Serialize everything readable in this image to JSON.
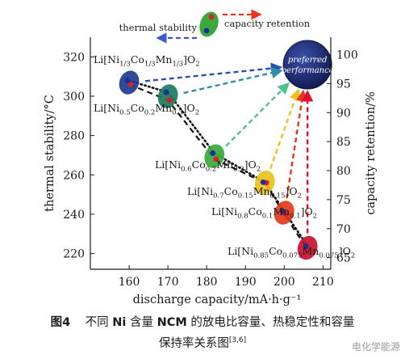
{
  "chart_data": {
    "type": "scatter",
    "xlabel": "discharge capacity/mA·h·g⁻¹",
    "ylabel_left": "thermal stability/°C",
    "ylabel_right": "capacity retention/%",
    "xlim": [
      150,
      212
    ],
    "ylim_left": [
      212,
      330
    ],
    "ylim_right": [
      63,
      103
    ],
    "x_ticks": [
      160,
      170,
      180,
      190,
      200,
      210
    ],
    "y_left_ticks": [
      220,
      240,
      260,
      280,
      300,
      320
    ],
    "y_right_ticks": [
      65,
      70,
      75,
      80,
      85,
      90,
      95,
      100
    ],
    "materials": [
      {
        "label_parts": [
          "Li[Ni",
          "1/3",
          "Co",
          "1/3",
          "Mn",
          "1/3",
          "]O",
          "2"
        ],
        "capacity": 160,
        "thermal_stability": 306,
        "capacity_retention": 95.5,
        "ellipse_color": "#1f3b8f",
        "arrow_color": "#2d4fb8"
      },
      {
        "label_parts": [
          "Li[Ni",
          "0.5",
          "Co",
          "0.2",
          "Mn",
          "0.3",
          "]O",
          "2"
        ],
        "capacity": 170,
        "thermal_stability": 298,
        "capacity_retention": 93.5,
        "ellipse_color": "#1e7a5c",
        "arrow_color": "#2e8fa8"
      },
      {
        "label_parts": [
          "Li[Ni",
          "0.6",
          "Co",
          "0.2",
          "Mn",
          "0.2",
          "]O",
          "2"
        ],
        "capacity": 182,
        "thermal_stability": 268,
        "capacity_retention": 83,
        "ellipse_color": "#3aa83a",
        "arrow_color": "#4cc28c"
      },
      {
        "label_parts": [
          "Li[Ni",
          "0.7",
          "Co",
          "0.15",
          "Mn",
          "0.15",
          "]O",
          "2"
        ],
        "capacity": 195,
        "thermal_stability": 256,
        "capacity_retention": 78,
        "ellipse_color": "#e8c21a",
        "arrow_color": "#f0c020"
      },
      {
        "label_parts": [
          "Li[Ni",
          "0.8",
          "Co",
          "0.1",
          "Mn",
          "0.1",
          "]O",
          "2"
        ],
        "capacity": 200,
        "thermal_stability": 240,
        "capacity_retention": 73,
        "ellipse_color": "#e23a1a",
        "arrow_color": "#e8361c"
      },
      {
        "label_parts": [
          "Li[Ni",
          "0.85",
          "Co",
          "0.075",
          "Mn",
          "0.075",
          "]O",
          "2"
        ],
        "capacity": 206,
        "thermal_stability": 222,
        "capacity_retention": 67,
        "ellipse_color": "#c8102e",
        "arrow_color": "#e0102e"
      }
    ],
    "trend_lines": {
      "thermal_stability_style": "dashed",
      "capacity_retention_style": "dotted"
    },
    "preferred": {
      "label_line1": "preferred",
      "label_line2": "performance",
      "capacity": 206,
      "thermal_stability": 316,
      "color": "#1c2a6b"
    },
    "legend": {
      "thermal_label": "thermal stability",
      "retention_label": "capacity retention",
      "thermal_arrow_color": "#3a5ac8",
      "retention_arrow_color": "#e8361c",
      "ellipse_color": "#3aa83a"
    }
  },
  "caption": {
    "fig_label": "图4",
    "text_parts": [
      "不同 ",
      "Ni",
      " 含量 ",
      "NCM",
      " 的放电比容量、热稳定性和容量"
    ],
    "line2": "保持率关系图",
    "ref": "[3,6]"
  },
  "watermark": "电化学能源"
}
